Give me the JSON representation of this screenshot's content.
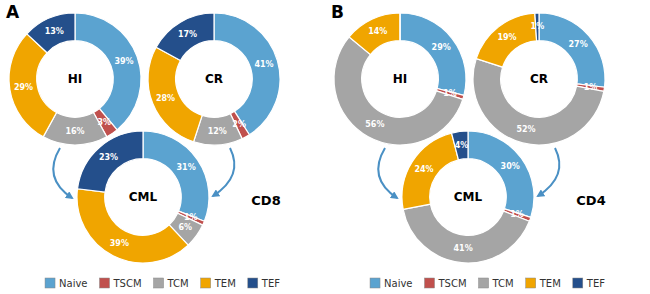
{
  "chart_data": [
    {
      "type": "donut",
      "title": "HI",
      "annotations": [
        "A",
        "CD8"
      ],
      "categories": [
        "Naive",
        "TSCM",
        "TCM",
        "TEM",
        "TEF"
      ],
      "values": [
        39,
        3,
        16,
        29,
        13
      ],
      "value_labels": [
        "39%",
        "3%",
        "16%",
        "29%",
        "13%"
      ],
      "colors": [
        "#5BA3D0",
        "#C0504D",
        "#A5A5A5",
        "#F0A500",
        "#244F8B"
      ],
      "data_labels": true,
      "legend": "bottom"
    },
    {
      "type": "donut",
      "title": "CR",
      "categories": [
        "Naive",
        "TSCM",
        "TCM",
        "TEM",
        "TEF"
      ],
      "values": [
        41,
        2,
        12,
        28,
        17
      ],
      "value_labels": [
        "41%",
        "2%",
        "12%",
        "28%",
        "17%"
      ],
      "colors": [
        "#5BA3D0",
        "#C0504D",
        "#A5A5A5",
        "#F0A500",
        "#244F8B"
      ],
      "data_labels": true
    },
    {
      "type": "donut",
      "title": "CML",
      "categories": [
        "Naive",
        "TSCM",
        "TCM",
        "TEM",
        "TEF"
      ],
      "values": [
        31,
        1,
        6,
        39,
        23
      ],
      "value_labels": [
        "31%",
        "1%",
        "6%",
        "39%",
        "23%"
      ],
      "colors": [
        "#5BA3D0",
        "#C0504D",
        "#A5A5A5",
        "#F0A500",
        "#244F8B"
      ],
      "data_labels": true
    },
    {
      "type": "donut",
      "title": "HI",
      "annotations": [
        "B",
        "CD4"
      ],
      "categories": [
        "Naive",
        "TSCM",
        "TCM",
        "TEM",
        "TEF"
      ],
      "values": [
        29,
        1,
        56,
        14,
        0
      ],
      "value_labels": [
        "29%",
        "1%",
        "56%",
        "14%",
        null
      ],
      "colors": [
        "#5BA3D0",
        "#C0504D",
        "#A5A5A5",
        "#F0A500",
        "#244F8B"
      ],
      "data_labels": true,
      "legend": "bottom"
    },
    {
      "type": "donut",
      "title": "CR",
      "categories": [
        "Naive",
        "TSCM",
        "TCM",
        "TEM",
        "TEF"
      ],
      "values": [
        27,
        1,
        52,
        19,
        1
      ],
      "value_labels": [
        "27%",
        "1%",
        "52%",
        "19%",
        "1%"
      ],
      "colors": [
        "#5BA3D0",
        "#C0504D",
        "#A5A5A5",
        "#F0A500",
        "#244F8B"
      ],
      "data_labels": true
    },
    {
      "type": "donut",
      "title": "CML",
      "categories": [
        "Naive",
        "TSCM",
        "TCM",
        "TEM",
        "TEF"
      ],
      "values": [
        30,
        1,
        41,
        24,
        4
      ],
      "value_labels": [
        "30%",
        "1%",
        "41%",
        "24%",
        "4%"
      ],
      "colors": [
        "#5BA3D0",
        "#C0504D",
        "#A5A5A5",
        "#F0A500",
        "#244F8B"
      ],
      "data_labels": true
    }
  ]
}
